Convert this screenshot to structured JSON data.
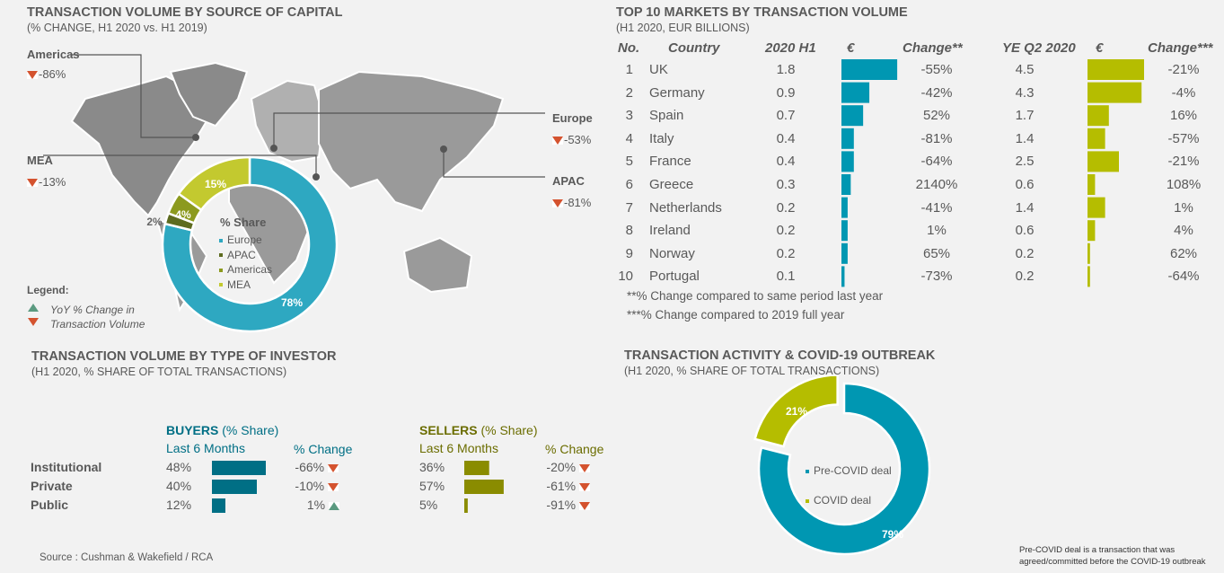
{
  "capital": {
    "title": "TRANSACTION VOLUME BY SOURCE OF CAPITAL",
    "subtitle": "(% CHANGE, H1 2020 vs. H1 2019)",
    "regions": [
      {
        "name": "Americas",
        "change": "-86%",
        "direction": "down"
      },
      {
        "name": "MEA",
        "change": "-13%",
        "direction": "down"
      },
      {
        "name": "Europe",
        "change": "-53%",
        "direction": "down"
      },
      {
        "name": "APAC",
        "change": "-81%",
        "direction": "down"
      }
    ],
    "legend_title": "Legend:",
    "legend_line1": "YoY % Change in",
    "legend_line2": "Transaction Volume"
  },
  "chart_data": [
    {
      "type": "pie",
      "title": "% Share",
      "categories": [
        "Europe",
        "APAC",
        "Americas",
        "MEA"
      ],
      "values": [
        78,
        2,
        4,
        15
      ],
      "labels": [
        "78%",
        "2%",
        "4%",
        "15%"
      ],
      "colors": [
        "#2ea8c1",
        "#5d6b1f",
        "#8c9a1e",
        "#c3c92f"
      ]
    },
    {
      "type": "table",
      "title": "TOP 10 MARKETS BY TRANSACTION VOLUME",
      "subtitle": "(H1 2020, EUR BILLIONS)",
      "columns": [
        "No.",
        "Country",
        "2020 H1",
        "€",
        "Change**",
        "YE Q2 2020",
        "€",
        "Change***"
      ],
      "rows": [
        {
          "no": "1",
          "country": "UK",
          "h1": 1.8,
          "change": "-55%",
          "ye": 4.5,
          "change_ye": "-21%"
        },
        {
          "no": "2",
          "country": "Germany",
          "h1": 0.9,
          "change": "-42%",
          "ye": 4.3,
          "change_ye": "-4%"
        },
        {
          "no": "3",
          "country": "Spain",
          "h1": 0.7,
          "change": "52%",
          "ye": 1.7,
          "change_ye": "16%"
        },
        {
          "no": "4",
          "country": "Italy",
          "h1": 0.4,
          "change": "-81%",
          "ye": 1.4,
          "change_ye": "-57%"
        },
        {
          "no": "5",
          "country": "France",
          "h1": 0.4,
          "change": "-64%",
          "ye": 2.5,
          "change_ye": "-21%"
        },
        {
          "no": "6",
          "country": "Greece",
          "h1": 0.3,
          "change": "2140%",
          "ye": 0.6,
          "change_ye": "108%"
        },
        {
          "no": "7",
          "country": "Netherlands",
          "h1": 0.2,
          "change": "-41%",
          "ye": 1.4,
          "change_ye": "1%"
        },
        {
          "no": "8",
          "country": "Ireland",
          "h1": 0.2,
          "change": "1%",
          "ye": 0.6,
          "change_ye": "4%"
        },
        {
          "no": "9",
          "country": "Norway",
          "h1": 0.2,
          "change": "65%",
          "ye": 0.2,
          "change_ye": "62%"
        },
        {
          "no": "10",
          "country": "Portugal",
          "h1": 0.1,
          "change": "-73%",
          "ye": 0.2,
          "change_ye": "-64%"
        }
      ],
      "colors": {
        "h1": "#0097b2",
        "ye": "#b5bd00"
      },
      "footnotes": [
        "**% Change compared to same period last year",
        "***% Change compared to 2019 full year"
      ]
    },
    {
      "type": "bar",
      "title": "TRANSACTION VOLUME BY TYPE OF INVESTOR",
      "subtitle": "(H1 2020, % SHARE OF TOTAL TRANSACTIONS)",
      "categories": [
        "Institutional",
        "Private",
        "Public"
      ],
      "buyers": {
        "label": "BUYERS",
        "label_suffix": "(% Share)",
        "col1": "Last 6 Months",
        "col2": "% Change",
        "values": [
          48,
          40,
          12
        ],
        "labels": [
          "48%",
          "40%",
          "12%"
        ],
        "changes": [
          "-66%",
          "-10%",
          "1%"
        ],
        "directions": [
          "down",
          "down",
          "up"
        ],
        "color": "#006f85"
      },
      "sellers": {
        "label": "SELLERS",
        "label_suffix": "(% Share)",
        "col1": "Last 6 Months",
        "col2": "% Change",
        "values": [
          36,
          57,
          5
        ],
        "labels": [
          "36%",
          "57%",
          "5%"
        ],
        "changes": [
          "-20%",
          "-61%",
          "-91%"
        ],
        "directions": [
          "down",
          "down",
          "down"
        ],
        "color": "#8a8c00"
      }
    },
    {
      "type": "pie",
      "title": "TRANSACTION ACTIVITY & COVID-19 OUTBREAK",
      "subtitle": "(H1 2020, % SHARE OF TOTAL TRANSACTIONS)",
      "categories": [
        "Pre-COVID deal",
        "COVID deal"
      ],
      "values": [
        79,
        21
      ],
      "labels": [
        "79%",
        "21%"
      ],
      "colors": [
        "#0097b2",
        "#b5bd00"
      ],
      "note": [
        "Pre-COVID deal is a transaction that was",
        "agreed/committed before the COVID-19 outbreak"
      ]
    }
  ],
  "source": "Source : Cushman & Wakefield / RCA"
}
